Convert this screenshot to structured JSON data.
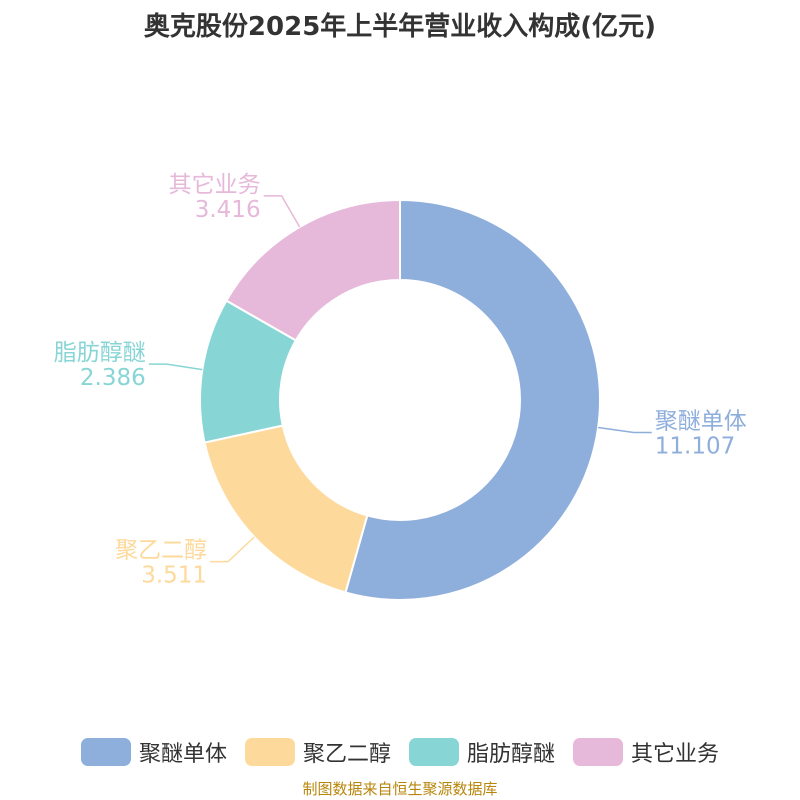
{
  "title": "奥克股份2025年上半年营业收入构成(亿元)",
  "source": "制图数据来自恒生聚源数据库",
  "chart_data": {
    "type": "pie",
    "style": "donut",
    "title": "奥克股份2025年上半年营业收入构成(亿元)",
    "unit": "亿元",
    "legend_position": "bottom",
    "slices": [
      {
        "name": "聚醚单体",
        "value": 11.107,
        "color": "#8eaedb"
      },
      {
        "name": "聚乙二醇",
        "value": 3.511,
        "color": "#fdd99b"
      },
      {
        "name": "脂肪醇醚",
        "value": 2.386,
        "color": "#88d5d5"
      },
      {
        "name": "其它业务",
        "value": 3.416,
        "color": "#e6b8d9"
      }
    ]
  }
}
